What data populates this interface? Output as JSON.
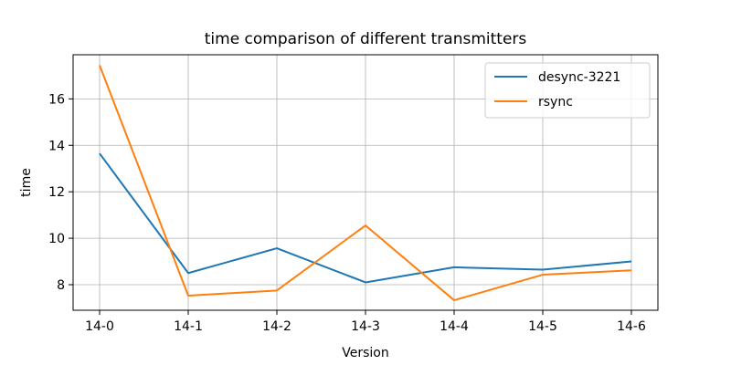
{
  "chart_data": {
    "type": "line",
    "title": "time comparison of different transmitters",
    "xlabel": "Version",
    "ylabel": "time",
    "categories": [
      "14-0",
      "14-1",
      "14-2",
      "14-3",
      "14-4",
      "14-5",
      "14-6"
    ],
    "ylim": [
      6.9,
      17.9
    ],
    "yticks": [
      8,
      10,
      12,
      14,
      16
    ],
    "grid": true,
    "legend_position": "top-right",
    "series": [
      {
        "name": "desync-3221",
        "color": "#1f77b4",
        "values": [
          13.65,
          8.5,
          9.57,
          8.1,
          8.75,
          8.65,
          9.0
        ]
      },
      {
        "name": "rsync",
        "color": "#ff7f0e",
        "values": [
          17.45,
          7.53,
          7.75,
          10.55,
          7.33,
          8.43,
          8.62
        ]
      }
    ]
  }
}
